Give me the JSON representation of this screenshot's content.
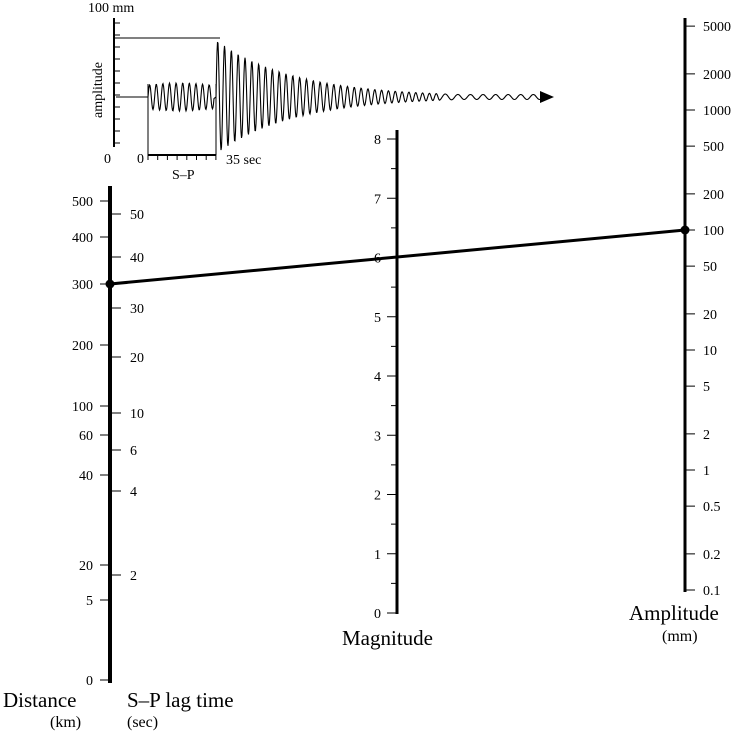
{
  "seismogram": {
    "top_label": "100 mm",
    "amplitude_label": "amplitude",
    "zero_left": "0",
    "zero_time": "0",
    "end_time": "35 sec",
    "sp_label": "S–P"
  },
  "distance_axis": {
    "title": "Distance",
    "unit": "(km)",
    "ticks": [
      "500",
      "400",
      "300",
      "200",
      "100",
      "60",
      "40",
      "20",
      "5",
      "0"
    ],
    "values": [
      500,
      400,
      300,
      200,
      100,
      60,
      40,
      20,
      5,
      0
    ]
  },
  "sp_axis": {
    "title": "S–P lag time",
    "unit": "(sec)",
    "ticks": [
      "50",
      "40",
      "30",
      "20",
      "10",
      "6",
      "4",
      "2"
    ],
    "values": [
      50,
      40,
      30,
      20,
      10,
      6,
      4,
      2
    ]
  },
  "magnitude_axis": {
    "title": "Magnitude",
    "ticks": [
      "8",
      "7",
      "6",
      "5",
      "4",
      "3",
      "2",
      "1",
      "0"
    ],
    "values": [
      8,
      7,
      6,
      5,
      4,
      3,
      2,
      1,
      0
    ]
  },
  "amplitude_axis": {
    "title": "Amplitude",
    "unit": "(mm)",
    "ticks": [
      "5000",
      "2000",
      "1000",
      "500",
      "200",
      "100",
      "50",
      "20",
      "10",
      "5",
      "2",
      "1",
      "0.5",
      "0.2",
      "0.1"
    ],
    "values": [
      5000,
      2000,
      1000,
      500,
      200,
      100,
      50,
      20,
      10,
      5,
      2,
      1,
      0.5,
      0.2,
      0.1
    ]
  },
  "example_reading": {
    "distance_km": 300,
    "sp_sec": 35,
    "magnitude": 6,
    "amplitude_mm": 100
  }
}
